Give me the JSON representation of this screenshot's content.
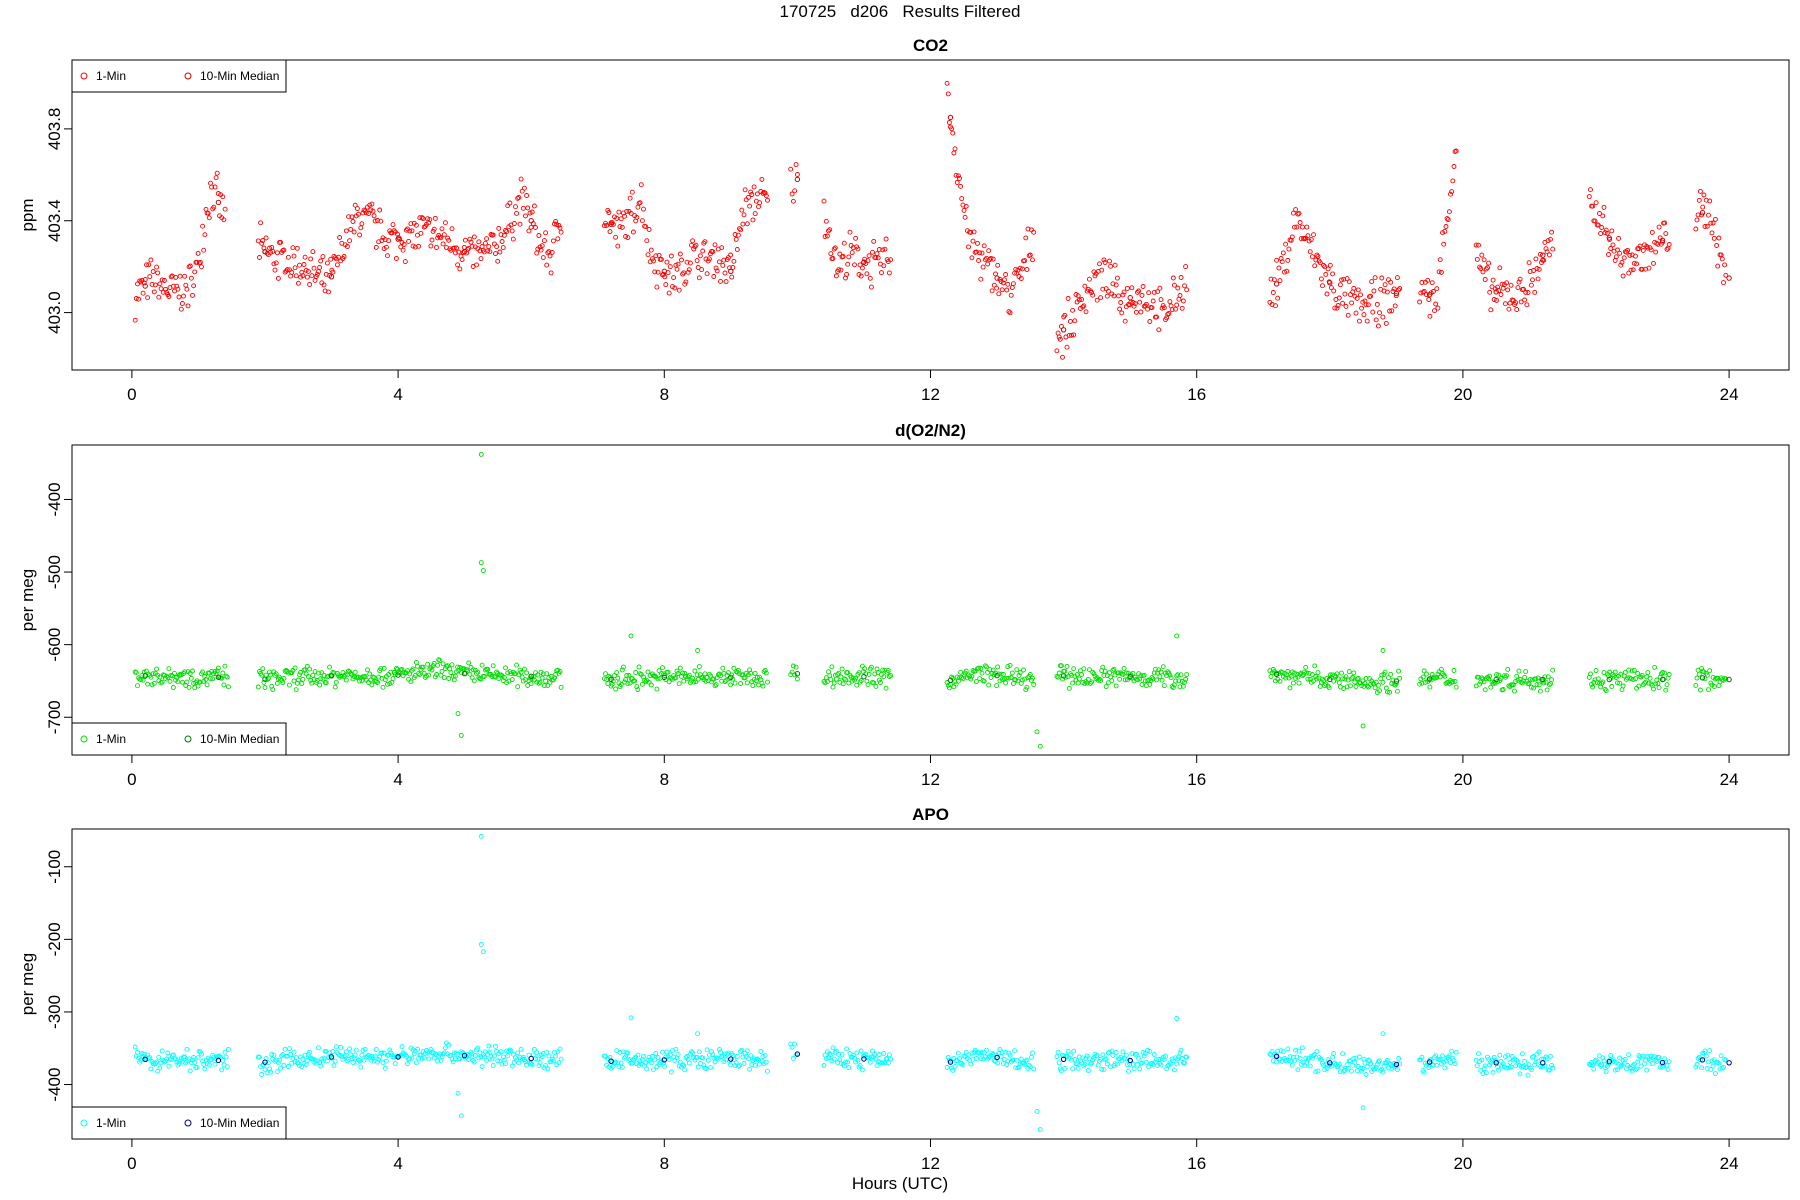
{
  "figure": {
    "title": "170725   d206   Results Filtered",
    "xlabel": "Hours (UTC)"
  },
  "chart_data": [
    {
      "type": "scatter",
      "title": "CO2",
      "xlabel": "Hours (UTC)",
      "ylabel": "ppm",
      "xlim": [
        -0.9,
        24.9
      ],
      "ylim": [
        402.75,
        404.1
      ],
      "xticks": [
        0,
        4,
        8,
        12,
        16,
        20,
        24
      ],
      "yticks": [
        403.0,
        403.4,
        403.8
      ],
      "ytick_labels": [
        "403.0",
        "403.4",
        "403.8"
      ],
      "grid": false,
      "legend_position": "top-left",
      "series": [
        {
          "name": "1-Min",
          "color": "#ff0000",
          "marker": "open-circle",
          "spread": 0.12,
          "segments": [
            {
              "x": [
                0.05,
                0.3,
                0.5,
                0.7,
                0.9,
                1.0,
                1.1,
                1.2,
                1.3,
                1.4
              ],
              "y": [
                403.08,
                403.14,
                403.1,
                403.09,
                403.12,
                403.22,
                403.42,
                403.55,
                403.48,
                403.42
              ]
            },
            {
              "x": [
                1.9,
                2.3,
                2.6,
                2.8,
                2.95,
                3.2,
                3.4,
                3.6,
                3.8,
                4.0,
                4.4,
                4.7,
                4.9,
                5.1,
                5.3,
                5.5,
                5.7,
                5.85,
                6.0,
                6.15,
                6.3,
                6.45
              ],
              "y": [
                403.28,
                403.22,
                403.2,
                403.15,
                403.12,
                403.3,
                403.42,
                403.4,
                403.32,
                403.32,
                403.35,
                403.32,
                403.28,
                403.25,
                403.25,
                403.3,
                403.4,
                403.5,
                403.4,
                403.28,
                403.25,
                403.42
              ]
            },
            {
              "x": [
                7.1,
                7.3,
                7.5,
                7.65,
                7.8,
                8.0,
                8.2,
                8.4,
                8.6,
                8.8,
                9.0,
                9.2,
                9.4,
                9.55
              ],
              "y": [
                403.42,
                403.35,
                403.42,
                403.5,
                403.25,
                403.18,
                403.15,
                403.25,
                403.22,
                403.25,
                403.18,
                403.45,
                403.5,
                403.48
              ]
            },
            {
              "x": [
                9.9,
                10.0
              ],
              "y": [
                403.55,
                403.58
              ]
            },
            {
              "x": [
                10.4,
                10.6,
                10.8,
                11.0,
                11.2,
                11.4
              ],
              "y": [
                403.45,
                403.2,
                403.25,
                403.22,
                403.2,
                403.25
              ]
            },
            {
              "x": [
                12.25,
                12.4,
                12.5,
                12.6,
                12.8,
                13.0,
                13.2,
                13.4,
                13.55
              ],
              "y": [
                403.95,
                403.65,
                403.45,
                403.3,
                403.22,
                403.15,
                403.08,
                403.2,
                403.35
              ]
            },
            {
              "x": [
                13.9,
                14.1,
                14.3,
                14.5,
                14.7,
                14.9,
                15.1,
                15.3,
                15.5,
                15.65,
                15.85
              ],
              "y": [
                402.9,
                402.95,
                403.08,
                403.15,
                403.12,
                403.05,
                403.08,
                403.05,
                402.98,
                403.05,
                403.15
              ]
            },
            {
              "x": [
                17.1,
                17.3,
                17.5,
                17.7,
                17.9,
                18.1,
                18.3,
                18.5,
                18.7,
                18.9,
                19.05
              ],
              "y": [
                403.05,
                403.2,
                403.42,
                403.28,
                403.18,
                403.08,
                403.05,
                403.02,
                403.05,
                403.05,
                403.1
              ]
            },
            {
              "x": [
                19.35,
                19.6,
                19.8,
                19.9
              ],
              "y": [
                403.12,
                403.05,
                403.5,
                403.75
              ]
            },
            {
              "x": [
                20.2,
                20.4,
                20.6,
                20.8,
                21.0,
                21.2,
                21.35
              ],
              "y": [
                403.25,
                403.1,
                403.08,
                403.08,
                403.12,
                403.25,
                403.28
              ]
            },
            {
              "x": [
                21.9,
                22.1,
                22.3,
                22.5,
                22.7,
                22.9,
                23.1
              ],
              "y": [
                403.45,
                403.4,
                403.25,
                403.22,
                403.25,
                403.28,
                403.35
              ]
            },
            {
              "x": [
                23.5,
                23.7,
                23.95
              ],
              "y": [
                403.42,
                403.45,
                403.15
              ]
            }
          ]
        },
        {
          "name": "10-Min Median",
          "color": "#cc0000",
          "marker": "open-circle",
          "step": 1,
          "sample_at": [
            0.2,
            1.3,
            2.0,
            3.0,
            4.0,
            5.0,
            6.0,
            7.2,
            8.0,
            9.0,
            10.0,
            11.0,
            12.3,
            13.0,
            14.0,
            15.0,
            17.2,
            18.0,
            19.0,
            19.5,
            20.5,
            21.2,
            22.2,
            23.0,
            23.6,
            24.0
          ]
        }
      ]
    },
    {
      "type": "scatter",
      "title": "d(O2/N2)",
      "xlabel": "Hours (UTC)",
      "ylabel": "per meg",
      "xlim": [
        -0.9,
        24.9
      ],
      "ylim": [
        -752,
        -325
      ],
      "xticks": [
        0,
        4,
        8,
        12,
        16,
        20,
        24
      ],
      "yticks": [
        -700,
        -600,
        -500,
        -400
      ],
      "ytick_labels": [
        "-700",
        "-600",
        "-500",
        "-400"
      ],
      "grid": false,
      "legend_position": "bottom-left",
      "series": [
        {
          "name": "1-Min",
          "color": "#00dd00",
          "marker": "open-circle",
          "spread": 18,
          "segments": [
            {
              "x": [
                0.05,
                1.45
              ],
              "y": [
                -643,
                -645
              ]
            },
            {
              "x": [
                1.9,
                3.0,
                4.0,
                4.6,
                5.0,
                5.5,
                6.45
              ],
              "y": [
                -648,
                -643,
                -642,
                -636,
                -640,
                -642,
                -645
              ]
            },
            {
              "x": [
                7.1,
                8.0,
                9.0,
                9.55
              ],
              "y": [
                -648,
                -645,
                -645,
                -645
              ]
            },
            {
              "x": [
                9.9,
                10.0
              ],
              "y": [
                -638,
                -640
              ]
            },
            {
              "x": [
                10.4,
                11.4
              ],
              "y": [
                -643,
                -645
              ]
            },
            {
              "x": [
                12.25,
                12.8,
                13.55
              ],
              "y": [
                -650,
                -640,
                -650
              ]
            },
            {
              "x": [
                13.9,
                15.85
              ],
              "y": [
                -643,
                -645
              ]
            },
            {
              "x": [
                17.1,
                18.0,
                18.5,
                19.05
              ],
              "y": [
                -640,
                -648,
                -652,
                -650
              ]
            },
            {
              "x": [
                19.35,
                19.9
              ],
              "y": [
                -648,
                -645
              ]
            },
            {
              "x": [
                20.2,
                21.35
              ],
              "y": [
                -648,
                -648
              ]
            },
            {
              "x": [
                21.9,
                23.1
              ],
              "y": [
                -648,
                -648
              ]
            },
            {
              "x": [
                23.5,
                23.95
              ],
              "y": [
                -645,
                -648
              ]
            }
          ],
          "outliers": {
            "x": [
              5.25,
              5.25,
              5.28,
              4.9,
              4.95,
              7.5,
              8.5,
              13.6,
              13.65,
              15.7,
              18.5,
              18.8
            ],
            "y": [
              -338,
              -487,
              -498,
              -695,
              -725,
              -588,
              -608,
              -720,
              -740,
              -588,
              -712,
              -608
            ]
          }
        },
        {
          "name": "10-Min Median",
          "color": "#007700",
          "marker": "open-circle",
          "step": 1,
          "sample_at": [
            0.2,
            1.3,
            2.0,
            3.0,
            4.0,
            5.0,
            6.0,
            7.2,
            8.0,
            9.0,
            10.0,
            11.0,
            12.3,
            13.0,
            14.0,
            15.0,
            17.2,
            18.0,
            19.0,
            19.5,
            20.5,
            21.2,
            22.2,
            23.0,
            23.6,
            24.0
          ]
        }
      ]
    },
    {
      "type": "scatter",
      "title": "APO",
      "xlabel": "Hours (UTC)",
      "ylabel": "per meg",
      "xlim": [
        -0.9,
        24.9
      ],
      "ylim": [
        -475,
        -48
      ],
      "xticks": [
        0,
        4,
        8,
        12,
        16,
        20,
        24
      ],
      "yticks": [
        -400,
        -300,
        -200,
        -100
      ],
      "ytick_labels": [
        "-400",
        "-300",
        "-200",
        "-100"
      ],
      "grid": false,
      "legend_position": "bottom-left",
      "series": [
        {
          "name": "1-Min",
          "color": "#00ffff",
          "marker": "open-circle",
          "spread": 18,
          "segments": [
            {
              "x": [
                0.05,
                1.45
              ],
              "y": [
                -365,
                -367
              ]
            },
            {
              "x": [
                1.9,
                3.0,
                4.0,
                4.6,
                5.0,
                5.5,
                6.45
              ],
              "y": [
                -370,
                -362,
                -362,
                -356,
                -360,
                -362,
                -366
              ]
            },
            {
              "x": [
                7.1,
                8.0,
                9.0,
                9.55
              ],
              "y": [
                -368,
                -366,
                -365,
                -366
              ]
            },
            {
              "x": [
                9.9,
                10.0
              ],
              "y": [
                -355,
                -358
              ]
            },
            {
              "x": [
                10.4,
                11.4
              ],
              "y": [
                -363,
                -366
              ]
            },
            {
              "x": [
                12.25,
                12.8,
                13.55
              ],
              "y": [
                -370,
                -360,
                -370
              ]
            },
            {
              "x": [
                13.9,
                15.85
              ],
              "y": [
                -365,
                -368
              ]
            },
            {
              "x": [
                17.1,
                18.0,
                18.5,
                19.05
              ],
              "y": [
                -360,
                -370,
                -375,
                -372
              ]
            },
            {
              "x": [
                19.35,
                19.9
              ],
              "y": [
                -370,
                -366
              ]
            },
            {
              "x": [
                20.2,
                21.35
              ],
              "y": [
                -370,
                -370
              ]
            },
            {
              "x": [
                21.9,
                23.1
              ],
              "y": [
                -368,
                -370
              ]
            },
            {
              "x": [
                23.5,
                23.95
              ],
              "y": [
                -365,
                -370
              ]
            }
          ],
          "outliers": {
            "x": [
              5.25,
              5.25,
              5.28,
              4.9,
              4.95,
              7.5,
              8.5,
              13.6,
              13.65,
              15.7,
              18.5,
              18.8
            ],
            "y": [
              -58,
              -207,
              -217,
              -412,
              -443,
              -308,
              -330,
              -437,
              -462,
              -309,
              -432,
              -330
            ]
          }
        },
        {
          "name": "10-Min Median",
          "color": "#000088",
          "marker": "open-circle",
          "step": 1,
          "sample_at": [
            0.2,
            1.3,
            2.0,
            3.0,
            4.0,
            5.0,
            6.0,
            7.2,
            8.0,
            9.0,
            10.0,
            11.0,
            12.3,
            13.0,
            14.0,
            15.0,
            17.2,
            18.0,
            19.0,
            19.5,
            20.5,
            21.2,
            22.2,
            23.0,
            23.6,
            24.0
          ]
        }
      ]
    }
  ]
}
